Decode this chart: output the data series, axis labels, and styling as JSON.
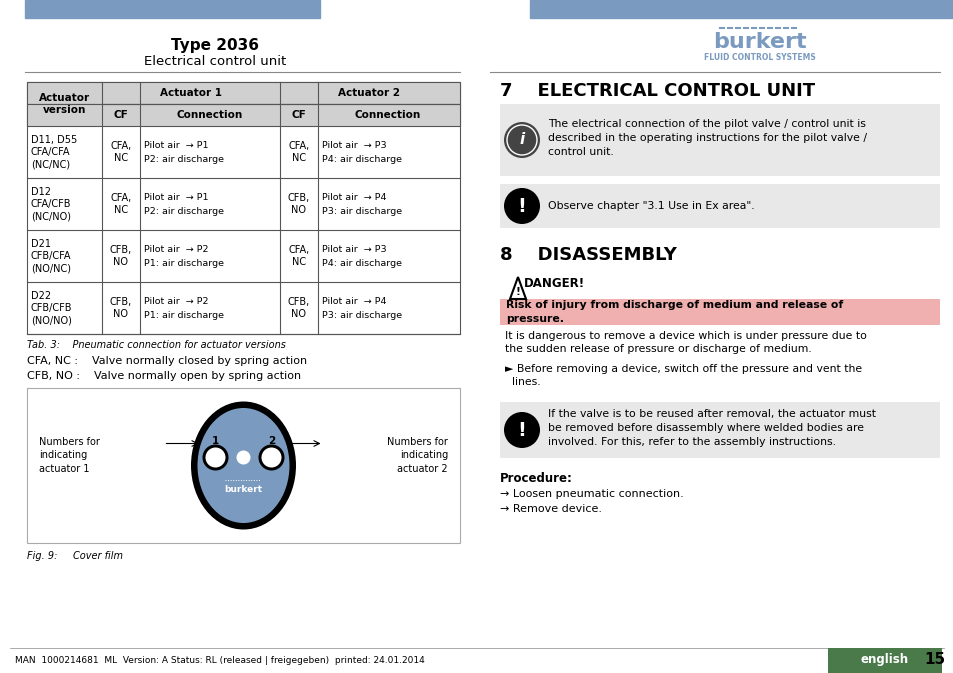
{
  "page_title": "Type 2036",
  "page_subtitle": "Electrical control unit",
  "header_bar_color": "#7a9bbf",
  "burkert_logo_color": "#7a9bbf",
  "table_header_bg": "#d0d0d0",
  "table_border_color": "#555555",
  "section7_title": "7    ELECTRICAL CONTROL UNIT",
  "info_box1_text": "The electrical connection of the pilot valve / control unit is\ndescribed in the operating instructions for the pilot valve /\ncontrol unit.",
  "info_box2_text": "Observe chapter \"3.1 Use in Ex area\".",
  "section8_title": "8    DISASSEMBLY",
  "danger_title": "DANGER!",
  "danger_highlight": "Risk of injury from discharge of medium and release of\npressure.",
  "danger_text": "It is dangerous to remove a device which is under pressure due to\nthe sudden release of pressure or discharge of medium.",
  "danger_bullet": "► Before removing a device, switch off the pressure and vent the\n  lines.",
  "warning_box_text": "If the valve is to be reused after removal, the actuator must\nbe removed before disassembly where welded bodies are\ninvolved. For this, refer to the assembly instructions.",
  "procedure_title": "Procedure:",
  "procedure_steps": [
    "→ Loosen pneumatic connection.",
    "→ Remove device."
  ],
  "tab_caption": "Tab. 3:    Pneumatic connection for actuator versions",
  "cfa_text": "CFA, NC :    Valve normally closed by spring action",
  "cfb_text": "CFB, NO :    Valve normally open by spring action",
  "fig_caption": "Fig. 9:     Cover film",
  "footer_text": "MAN  1000214681  ML  Version: A Status: RL (released | freigegeben)  printed: 24.01.2014",
  "page_number": "15",
  "english_label": "english",
  "table_data": [
    [
      "D11, D55\nCFA/CFA\n(NC/NC)",
      "CFA,\nNC",
      "Pilot air  → P1\nP2: air discharge",
      "CFA,\nNC",
      "Pilot air  → P3\nP4: air discharge"
    ],
    [
      "D12\nCFA/CFB\n(NC/NO)",
      "CFA,\nNC",
      "Pilot air  → P1\nP2: air discharge",
      "CFB,\nNO",
      "Pilot air  → P4\nP3: air discharge"
    ],
    [
      "D21\nCFB/CFA\n(NO/NC)",
      "CFB,\nNO",
      "Pilot air  → P2\nP1: air discharge",
      "CFA,\nNC",
      "Pilot air  → P3\nP4: air discharge"
    ],
    [
      "D22\nCFB/CFB\n(NO/NO)",
      "CFB,\nNO",
      "Pilot air  → P2\nP1: air discharge",
      "CFB,\nNO",
      "Pilot air  → P4\nP3: air discharge"
    ]
  ]
}
